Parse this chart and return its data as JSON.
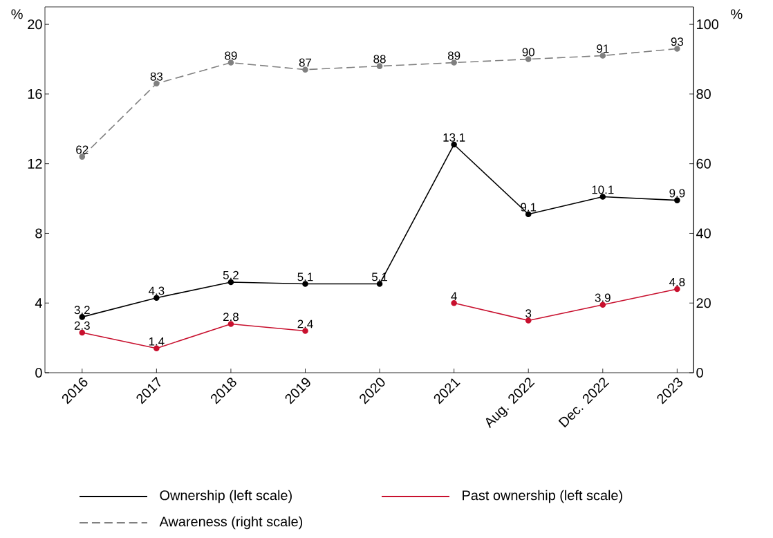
{
  "chart_data": {
    "type": "line",
    "categories": [
      "2016",
      "2017",
      "2018",
      "2019",
      "2020",
      "2021",
      "Aug. 2022",
      "Dec. 2022",
      "2023"
    ],
    "series": [
      {
        "name": "Ownership (left scale)",
        "color": "#000000",
        "values": [
          3.2,
          4.3,
          5.2,
          5.1,
          5.1,
          13.1,
          9.1,
          10.1,
          9.9
        ]
      },
      {
        "name": "Past ownership (left scale)",
        "color": "#c8102e",
        "values": [
          2.3,
          1.4,
          2.8,
          2.4,
          null,
          4,
          3,
          3.9,
          4.8
        ]
      },
      {
        "name": "Awareness (right scale)",
        "color": "#808080",
        "axis": "y2",
        "line_style": "dashed",
        "values": [
          62,
          83,
          89,
          87,
          88,
          89,
          90,
          91,
          93
        ]
      }
    ],
    "ylabel": "%",
    "y2label": "%",
    "ylim": [
      0,
      21
    ],
    "yticks": [
      0,
      4,
      8,
      12,
      16,
      20
    ],
    "y2lim": [
      0,
      105
    ],
    "y2ticks": [
      0,
      20,
      40,
      60,
      80,
      100
    ],
    "marker": "circle",
    "data_labels": true,
    "legend": "bottom",
    "grid": false
  }
}
